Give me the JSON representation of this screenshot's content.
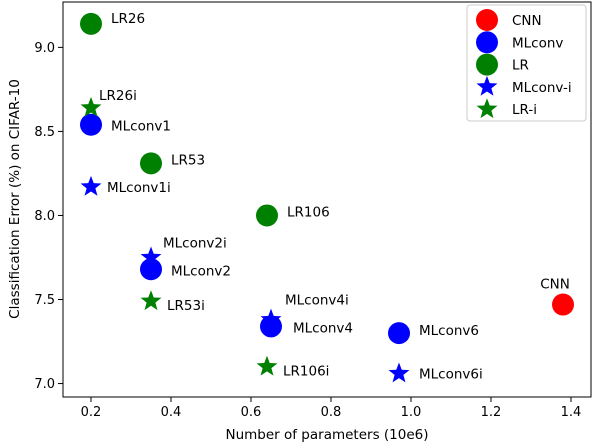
{
  "chart_data": {
    "type": "scatter",
    "xlabel": "Number of parameters (10e6)",
    "ylabel": "Classification Error (%) on CIFAR-10",
    "xlim": [
      0.13,
      1.45
    ],
    "ylim": [
      6.92,
      9.27
    ],
    "xticks": [
      0.2,
      0.4,
      0.6,
      0.8,
      1.0,
      1.2,
      1.4
    ],
    "yticks": [
      7.0,
      7.5,
      8.0,
      8.5,
      9.0
    ],
    "grid": false,
    "legend_position": "top-right",
    "series": [
      {
        "name": "CNN",
        "marker": "circle",
        "color": "#ff0000",
        "points": [
          {
            "x": 1.38,
            "y": 7.47,
            "label": "CNN"
          }
        ]
      },
      {
        "name": "MLconv",
        "marker": "circle",
        "color": "#0000ff",
        "points": [
          {
            "x": 0.2,
            "y": 8.54,
            "label": "MLconv1"
          },
          {
            "x": 0.35,
            "y": 7.68,
            "label": "MLconv2"
          },
          {
            "x": 0.65,
            "y": 7.34,
            "label": "MLconv4"
          },
          {
            "x": 0.97,
            "y": 7.3,
            "label": "MLconv6"
          }
        ]
      },
      {
        "name": "LR",
        "marker": "circle",
        "color": "#008000",
        "points": [
          {
            "x": 0.2,
            "y": 9.14,
            "label": "LR26"
          },
          {
            "x": 0.35,
            "y": 8.31,
            "label": "LR53"
          },
          {
            "x": 0.64,
            "y": 8.0,
            "label": "LR106"
          }
        ]
      },
      {
        "name": "MLconv-i",
        "marker": "star",
        "color": "#0000ff",
        "points": [
          {
            "x": 0.2,
            "y": 8.17,
            "label": "MLconv1i"
          },
          {
            "x": 0.35,
            "y": 7.75,
            "label": "MLconv2i"
          },
          {
            "x": 0.65,
            "y": 7.38,
            "label": "MLconv4i"
          },
          {
            "x": 0.97,
            "y": 7.06,
            "label": "MLconv6i"
          }
        ]
      },
      {
        "name": "LR-i",
        "marker": "star",
        "color": "#008000",
        "points": [
          {
            "x": 0.2,
            "y": 8.64,
            "label": "LR26i"
          },
          {
            "x": 0.35,
            "y": 7.49,
            "label": "LR53i"
          },
          {
            "x": 0.64,
            "y": 7.1,
            "label": "LR106i"
          }
        ]
      }
    ]
  }
}
